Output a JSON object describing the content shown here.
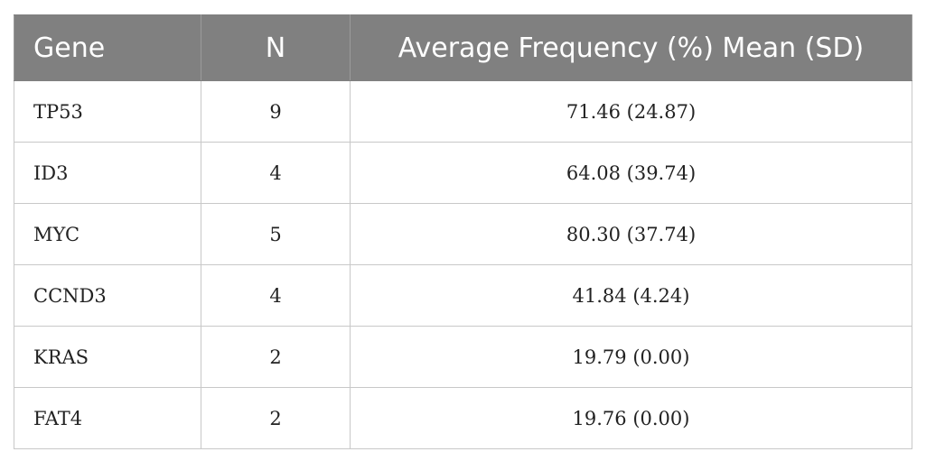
{
  "table": {
    "headers": [
      "Gene",
      "N",
      "Average Frequency (%) Mean (SD)"
    ],
    "rows": [
      {
        "gene": "TP53",
        "n": "9",
        "freq": "71.46 (24.87)"
      },
      {
        "gene": "ID3",
        "n": "4",
        "freq": "64.08 (39.74)"
      },
      {
        "gene": "MYC",
        "n": "5",
        "freq": "80.30 (37.74)"
      },
      {
        "gene": "CCND3",
        "n": "4",
        "freq": "41.84 (4.24)"
      },
      {
        "gene": "KRAS",
        "n": "2",
        "freq": "19.79 (0.00)"
      },
      {
        "gene": "FAT4",
        "n": "2",
        "freq": "19.76 (0.00)"
      }
    ]
  }
}
